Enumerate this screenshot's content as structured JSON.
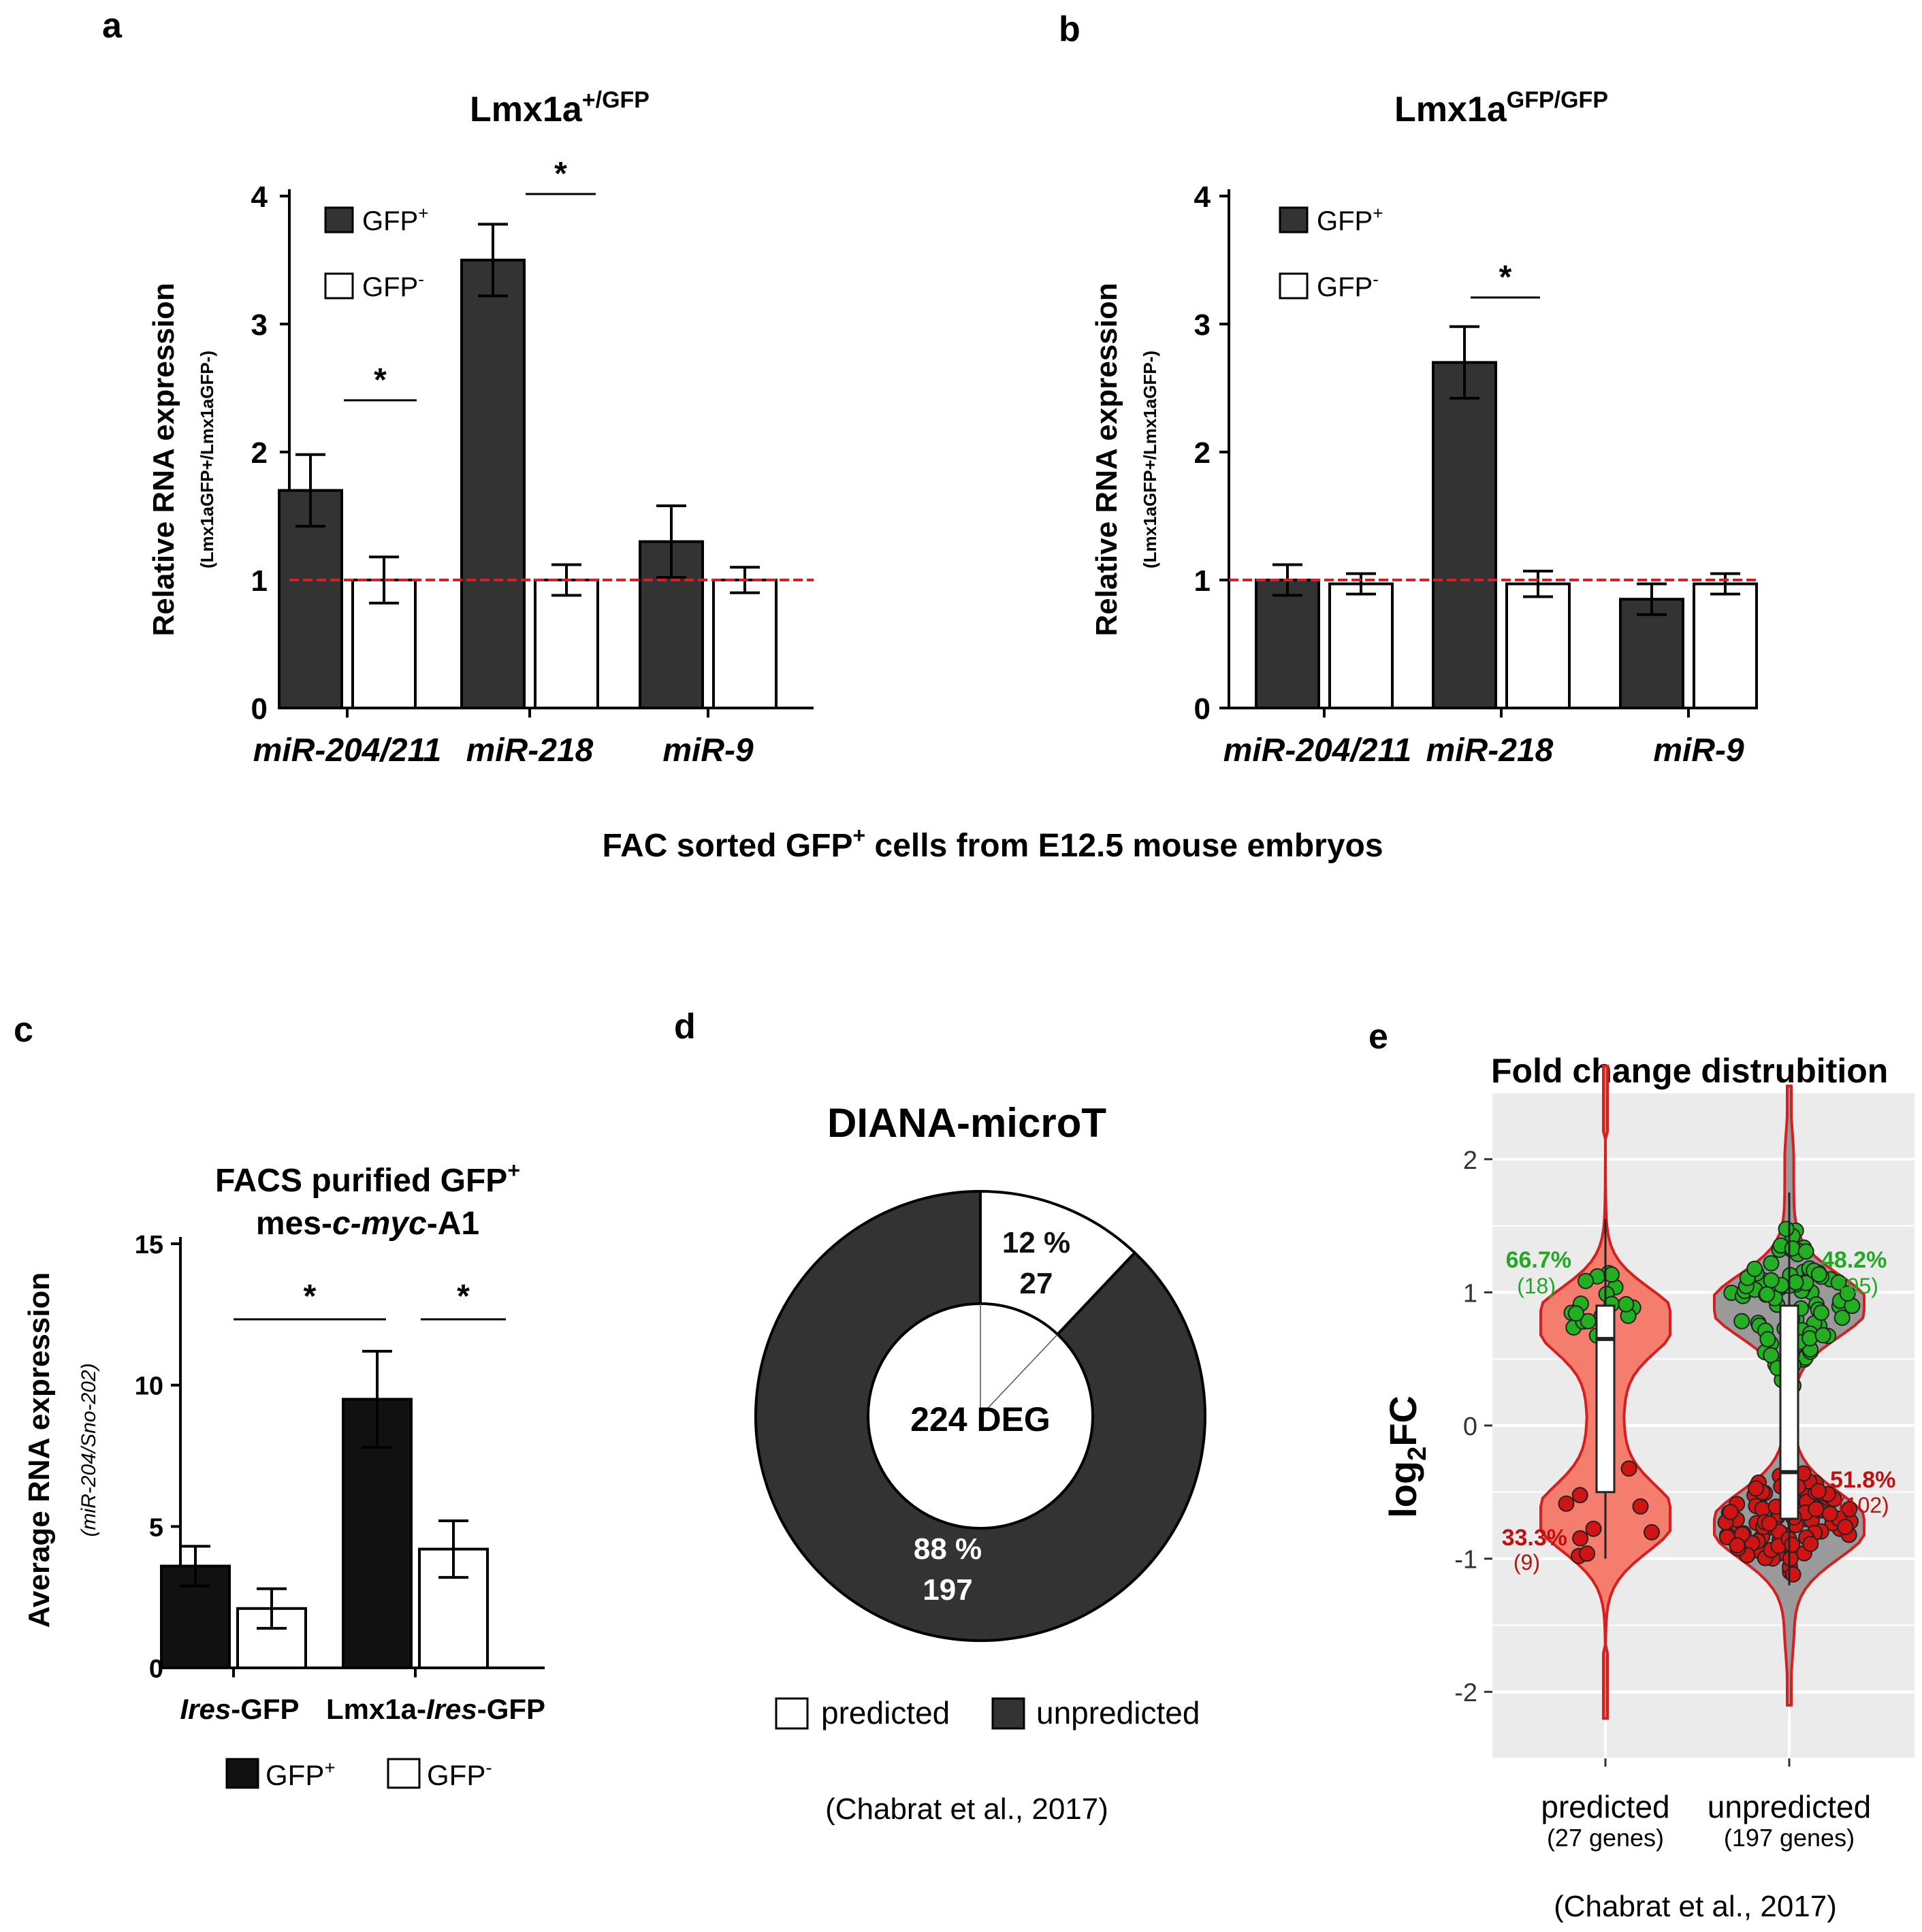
{
  "footer_ab": "FAC sorted GFP+ cells from E12.5 mouse embryos",
  "colors": {
    "dark": "#333333",
    "black": "#111111",
    "red": "#d42020",
    "violin_red": "#f47d6e",
    "violin_grey": "#9a9a9a",
    "green": "#22a822",
    "darkred": "#c01010",
    "panel_bg": "#ebebeb"
  },
  "chart_data": [
    {
      "panel": "a",
      "type": "bar",
      "title_base": "Lmx1a",
      "title_sup": "+/GFP",
      "ylabel": "Relative RNA expression",
      "ylabel_sub": "(Lmx1aGFP+/Lmx1aGFP-)",
      "ylim": [
        0,
        4
      ],
      "yticks": [
        0,
        1,
        2,
        3,
        4
      ],
      "categories": [
        "miR-204/211",
        "miR-218",
        "miR-9"
      ],
      "series": [
        {
          "name": "GFP+",
          "values": [
            1.7,
            3.5,
            1.3
          ],
          "errors": [
            0.28,
            0.28,
            0.28
          ]
        },
        {
          "name": "GFP-",
          "values": [
            1.0,
            1.0,
            1.0
          ],
          "errors": [
            0.18,
            0.12,
            0.1
          ]
        }
      ],
      "legend": [
        "GFP+",
        "GFP-"
      ],
      "reference_line": 1.0,
      "significance": [
        {
          "category": 0,
          "label": "*"
        },
        {
          "category": 1,
          "label": "*"
        }
      ]
    },
    {
      "panel": "b",
      "type": "bar",
      "title_base": "Lmx1a",
      "title_sup": "GFP/GFP",
      "ylabel": "Relative RNA expression",
      "ylabel_sub": "(Lmx1aGFP+/Lmx1aGFP-)",
      "ylim": [
        0,
        4
      ],
      "yticks": [
        0,
        1,
        2,
        3,
        4
      ],
      "categories": [
        "miR-204/211",
        "miR-218",
        "miR-9"
      ],
      "series": [
        {
          "name": "GFP+",
          "values": [
            1.0,
            2.7,
            0.85
          ],
          "errors": [
            0.12,
            0.28,
            0.12
          ]
        },
        {
          "name": "GFP-",
          "values": [
            0.97,
            0.97,
            0.97
          ],
          "errors": [
            0.08,
            0.1,
            0.08
          ]
        }
      ],
      "legend": [
        "GFP+",
        "GFP-"
      ],
      "reference_line": 1.0,
      "significance": [
        {
          "category": 1,
          "label": "*"
        }
      ]
    },
    {
      "panel": "c",
      "type": "bar",
      "title_line1": "FACS purified GFP+",
      "title_line2": "mes-c-myc-A1",
      "ylabel": "Average RNA expression",
      "ylabel_sub": "(miR-204/Sno-202)",
      "ylim": [
        0,
        15
      ],
      "yticks": [
        0,
        5,
        10,
        15
      ],
      "categories": [
        "Ires-GFP",
        "Lmx1a-Ires-GFP"
      ],
      "series": [
        {
          "name": "GFP+",
          "values": [
            3.6,
            9.5
          ],
          "errors": [
            0.7,
            1.7
          ]
        },
        {
          "name": "GFP-",
          "values": [
            2.1,
            4.2
          ],
          "errors": [
            0.7,
            1.0
          ]
        }
      ],
      "legend": [
        "GFP+",
        "GFP-"
      ],
      "significance": [
        {
          "label": "*"
        },
        {
          "label": "*"
        }
      ]
    },
    {
      "panel": "d",
      "type": "pie",
      "title": "DIANA-microT",
      "center_label": "224 DEG",
      "slices": [
        {
          "name": "predicted",
          "percent_label": "12 %",
          "count": 27
        },
        {
          "name": "unpredicted",
          "percent_label": "88 %",
          "count": 197
        }
      ],
      "legend": [
        "predicted",
        "unpredicted"
      ],
      "source": "(Chabrat et al., 2017)"
    },
    {
      "panel": "e",
      "type": "scatter",
      "subtype": "violin",
      "title": "Fold change distrubition",
      "ylabel": "log2FC",
      "ylim": [
        -2.5,
        2.5
      ],
      "yticks": [
        -2,
        -1,
        0,
        1,
        2
      ],
      "groups": [
        {
          "name": "predicted",
          "sub": "(27 genes)",
          "up_pct": "66.7%",
          "up_n": "(18)",
          "down_pct": "33.3%",
          "down_n": "(9)",
          "median": 0.65,
          "q1": -0.5,
          "q3": 0.9,
          "whisker_low": -1.0,
          "whisker_high": 1.55,
          "violin_range": [
            -2.2,
            2.7
          ],
          "modes": [
            0.8,
            -0.7
          ]
        },
        {
          "name": "unpredicted",
          "sub": "(197 genes)",
          "up_pct": "48.2%",
          "up_n": "(95)",
          "down_pct": "51.8%",
          "down_n": "(102)",
          "median": -0.35,
          "q1": -0.7,
          "q3": 0.9,
          "whisker_low": -1.2,
          "whisker_high": 1.75,
          "violin_range": [
            -2.1,
            2.55
          ],
          "modes": [
            0.9,
            -0.75
          ]
        }
      ],
      "source": "(Chabrat et al., 2017)"
    }
  ]
}
